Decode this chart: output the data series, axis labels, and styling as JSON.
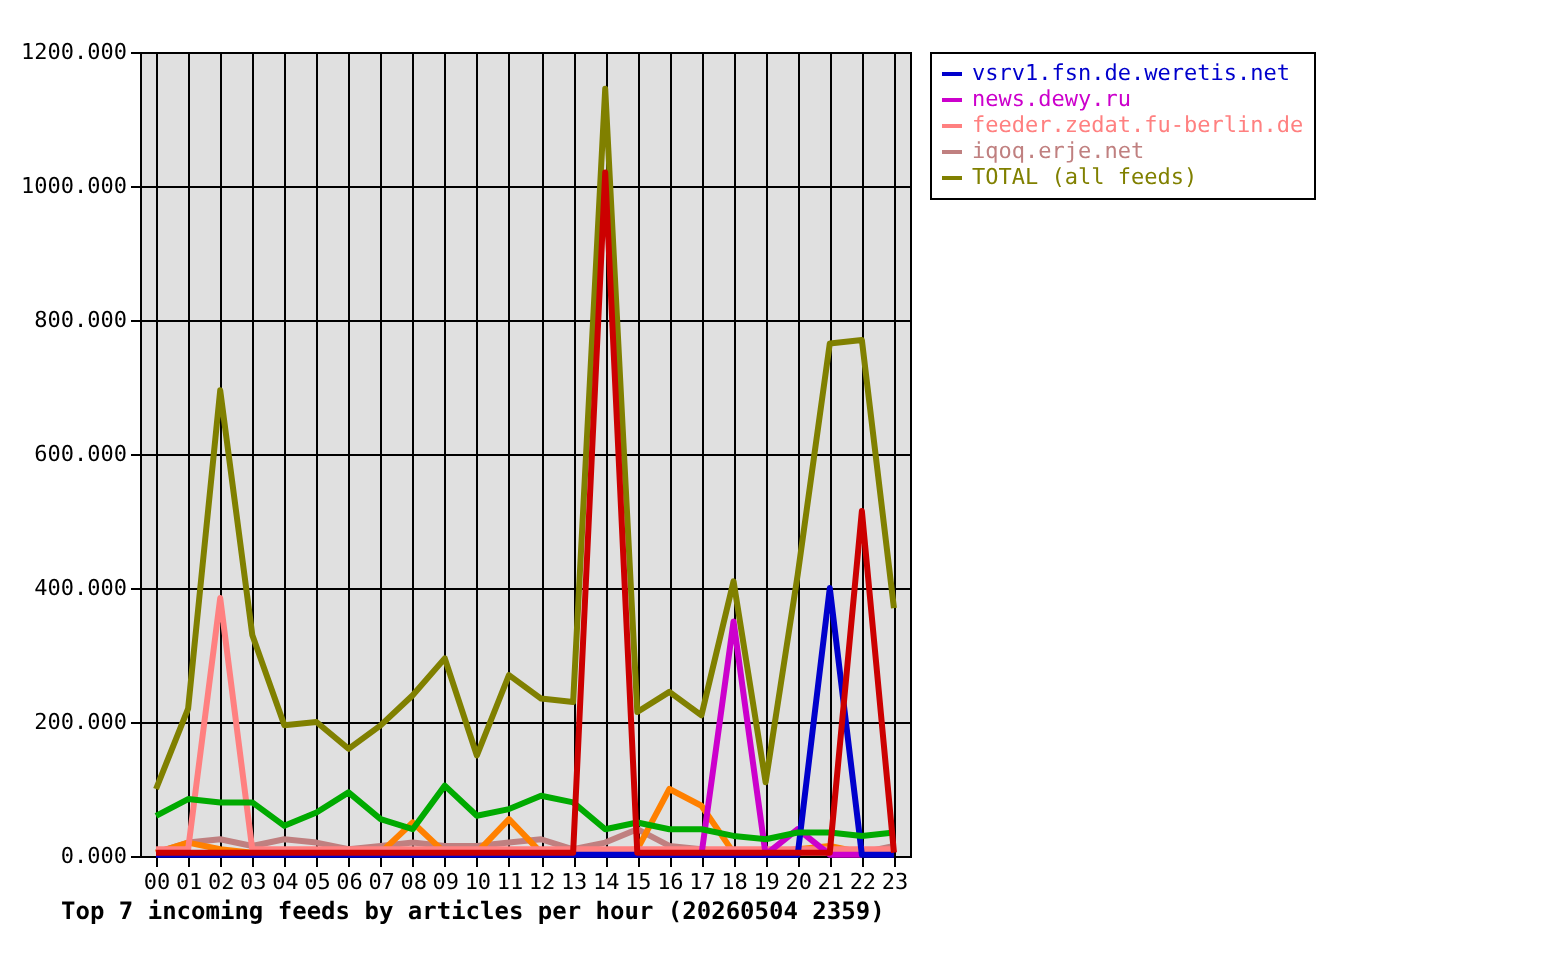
{
  "chart_data": {
    "type": "line",
    "xlabel": "Top 7 incoming feeds by articles per hour (20260504 2359)",
    "categories": [
      "00",
      "01",
      "02",
      "03",
      "04",
      "05",
      "06",
      "07",
      "08",
      "09",
      "10",
      "11",
      "12",
      "13",
      "14",
      "15",
      "16",
      "17",
      "18",
      "19",
      "20",
      "21",
      "22",
      "23"
    ],
    "ylim": [
      0,
      1200
    ],
    "yticks": [
      {
        "value": 0,
        "label": "0.000"
      },
      {
        "value": 200,
        "label": "200.000"
      },
      {
        "value": 400,
        "label": "400.000"
      },
      {
        "value": 600,
        "label": "600.000"
      },
      {
        "value": 800,
        "label": "800.000"
      },
      {
        "value": 1000,
        "label": "1000.000"
      },
      {
        "value": 1200,
        "label": "1200.000"
      }
    ],
    "grid": true,
    "legend": "right",
    "series": [
      {
        "color": "#cc0000",
        "values": [
          5,
          5,
          5,
          5,
          5,
          5,
          5,
          5,
          5,
          5,
          5,
          5,
          5,
          5,
          1020,
          5,
          5,
          5,
          5,
          5,
          5,
          5,
          515,
          5
        ]
      },
      {
        "color": "#00aa00",
        "values": [
          60,
          85,
          80,
          80,
          45,
          65,
          95,
          55,
          40,
          105,
          60,
          70,
          90,
          80,
          40,
          50,
          40,
          40,
          30,
          25,
          35,
          35,
          30,
          35
        ]
      },
      {
        "name": "vsrv1.fsn.de.weretis.net",
        "color": "#0000cc",
        "values": [
          2,
          2,
          2,
          2,
          2,
          2,
          2,
          2,
          2,
          2,
          2,
          2,
          2,
          2,
          2,
          2,
          2,
          2,
          2,
          2,
          2,
          400,
          2,
          2
        ]
      },
      {
        "name": "news.dewy.ru",
        "color": "#cc00cc",
        "values": [
          null,
          null,
          null,
          null,
          null,
          null,
          null,
          null,
          null,
          null,
          null,
          null,
          null,
          null,
          null,
          null,
          null,
          2,
          350,
          2,
          40,
          2,
          2,
          null
        ]
      },
      {
        "name": "feeder.zedat.fu-berlin.de",
        "color": "#ff8080",
        "values": [
          10,
          10,
          385,
          10,
          10,
          10,
          10,
          10,
          10,
          10,
          10,
          10,
          10,
          10,
          10,
          10,
          10,
          10,
          10,
          10,
          10,
          10,
          10,
          10
        ]
      },
      {
        "color": "#ff8000",
        "values": [
          5,
          20,
          10,
          5,
          5,
          5,
          5,
          5,
          50,
          5,
          5,
          55,
          5,
          5,
          5,
          10,
          100,
          75,
          5,
          5,
          10,
          15,
          5,
          5
        ]
      },
      {
        "name": "iqoq.erje.net",
        "color": "#c08080",
        "values": [
          5,
          20,
          25,
          15,
          25,
          20,
          10,
          15,
          20,
          15,
          15,
          20,
          25,
          10,
          20,
          40,
          15,
          10,
          5,
          5,
          5,
          5,
          5,
          15
        ]
      },
      {
        "name": "TOTAL (all feeds)",
        "color": "#808000",
        "values": [
          100,
          220,
          695,
          330,
          195,
          200,
          160,
          195,
          240,
          295,
          150,
          270,
          235,
          230,
          1145,
          215,
          245,
          210,
          410,
          110,
          420,
          765,
          770,
          370
        ]
      }
    ]
  }
}
